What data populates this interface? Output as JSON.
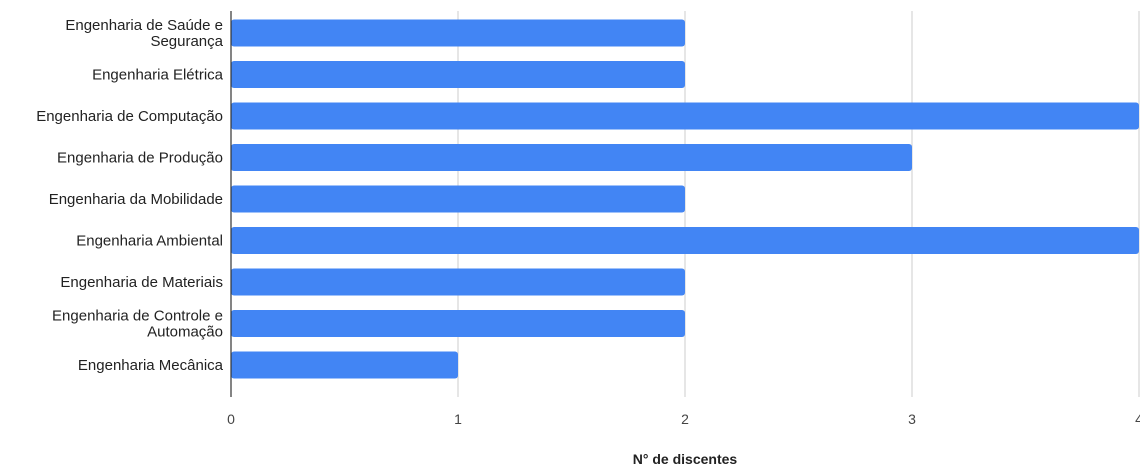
{
  "chart_data": {
    "type": "bar",
    "orientation": "horizontal",
    "title": "",
    "xlabel": "N° de discentes",
    "ylabel": "",
    "categories": [
      [
        "Engenharia de Saúde e",
        "Segurança"
      ],
      [
        "Engenharia Elétrica"
      ],
      [
        "Engenharia de Computação"
      ],
      [
        "Engenharia de Produção"
      ],
      [
        "Engenharia da Mobilidade"
      ],
      [
        "Engenharia Ambiental"
      ],
      [
        "Engenharia de Materiais"
      ],
      [
        "Engenharia de Controle e",
        "Automação"
      ],
      [
        "Engenharia Mecânica"
      ]
    ],
    "values": [
      2,
      2,
      4,
      3,
      2,
      4,
      2,
      2,
      1
    ],
    "xlim": [
      0,
      4
    ],
    "xticks": [
      "0",
      "1",
      "2",
      "3",
      "4"
    ],
    "grid": true,
    "legend": "none",
    "bar_color": "#4285f4",
    "grid_color": "#cccccc",
    "axis_color": "#333333"
  }
}
